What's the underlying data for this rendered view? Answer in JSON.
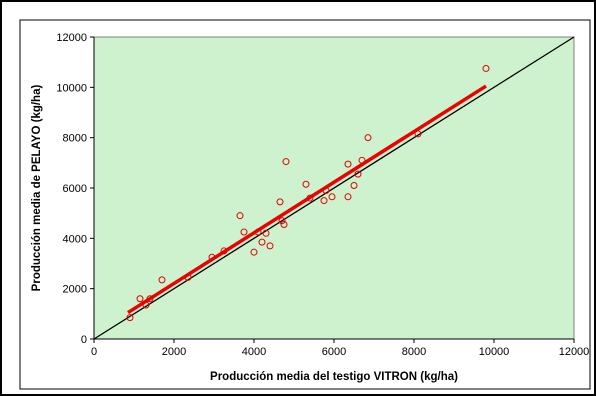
{
  "chart_data": {
    "type": "scatter",
    "title": "",
    "xlabel": "Producción media del testigo VITRON (kg/ha)",
    "ylabel": "Producción media de PELAYO (kg/ha)",
    "xlim": [
      0,
      12000
    ],
    "ylim": [
      0,
      12000
    ],
    "xticks": [
      0,
      2000,
      4000,
      6000,
      8000,
      10000,
      12000
    ],
    "yticks": [
      0,
      2000,
      4000,
      6000,
      8000,
      10000,
      12000
    ],
    "xtick_labels": [
      "0",
      "2000",
      "4000",
      "6000",
      "8000",
      "10000",
      "12000"
    ],
    "ytick_labels": [
      "0",
      "2000",
      "4000",
      "6000",
      "8000",
      "10000",
      "12000"
    ],
    "grid": false,
    "legend": "none",
    "colors": {
      "plot_background": "#cdf2cd",
      "points": "#e00000",
      "trend_line": "#ee0000",
      "reference_line": "#000000",
      "frame": "#000000"
    },
    "points": [
      {
        "x": 900,
        "y": 850
      },
      {
        "x": 1150,
        "y": 1600
      },
      {
        "x": 1300,
        "y": 1350
      },
      {
        "x": 1400,
        "y": 1600
      },
      {
        "x": 1700,
        "y": 2350
      },
      {
        "x": 2350,
        "y": 2450
      },
      {
        "x": 2950,
        "y": 3250
      },
      {
        "x": 3250,
        "y": 3500
      },
      {
        "x": 3650,
        "y": 4900
      },
      {
        "x": 3750,
        "y": 4250
      },
      {
        "x": 4000,
        "y": 3450
      },
      {
        "x": 4100,
        "y": 4250
      },
      {
        "x": 4200,
        "y": 3850
      },
      {
        "x": 4300,
        "y": 4200
      },
      {
        "x": 4400,
        "y": 3700
      },
      {
        "x": 4650,
        "y": 5450
      },
      {
        "x": 4700,
        "y": 4700
      },
      {
        "x": 4750,
        "y": 4550
      },
      {
        "x": 4800,
        "y": 7050
      },
      {
        "x": 5300,
        "y": 6150
      },
      {
        "x": 5400,
        "y": 5600
      },
      {
        "x": 5750,
        "y": 5500
      },
      {
        "x": 5800,
        "y": 5900
      },
      {
        "x": 5950,
        "y": 5650
      },
      {
        "x": 6350,
        "y": 5650
      },
      {
        "x": 6350,
        "y": 6950
      },
      {
        "x": 6500,
        "y": 6100
      },
      {
        "x": 6600,
        "y": 6550
      },
      {
        "x": 6700,
        "y": 7100
      },
      {
        "x": 6850,
        "y": 8000
      },
      {
        "x": 8100,
        "y": 8150
      },
      {
        "x": 9800,
        "y": 10750
      }
    ],
    "trend_line": {
      "x": [
        850,
        9800
      ],
      "y": [
        1050,
        10050
      ]
    },
    "reference_line": {
      "x": [
        0,
        12000
      ],
      "y": [
        0,
        12000
      ]
    }
  }
}
